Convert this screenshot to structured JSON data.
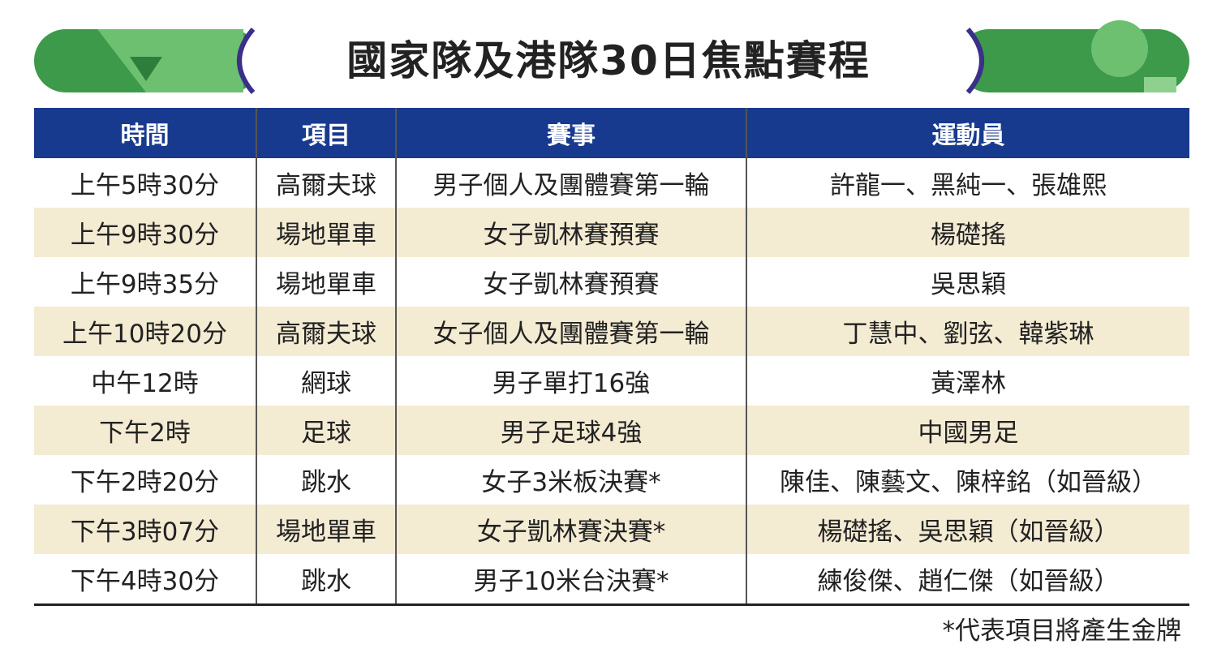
{
  "header": {
    "title": "國家隊及港隊30日焦點賽程"
  },
  "table": {
    "columns": [
      "時間",
      "項目",
      "賽事",
      "運動員"
    ],
    "rows": [
      [
        "上午5時30分",
        "高爾夫球",
        "男子個人及團體賽第一輪",
        "許龍一、黑純一、張雄熙"
      ],
      [
        "上午9時30分",
        "場地單車",
        "女子凱林賽預賽",
        "楊礎搖"
      ],
      [
        "上午9時35分",
        "場地單車",
        "女子凱林賽預賽",
        "吳思穎"
      ],
      [
        "上午10時20分",
        "高爾夫球",
        "女子個人及團體賽第一輪",
        "丁慧中、劉弦、韓紫琳"
      ],
      [
        "中午12時",
        "網球",
        "男子單打16強",
        "黃澤林"
      ],
      [
        "下午2時",
        "足球",
        "男子足球4強",
        "中國男足"
      ],
      [
        "下午2時20分",
        "跳水",
        "女子3米板決賽*",
        "陳佳、陳藝文、陳梓銘（如晉級）"
      ],
      [
        "下午3時07分",
        "場地單車",
        "女子凱林賽決賽*",
        "楊礎搖、吳思穎（如晉級）"
      ],
      [
        "下午4時30分",
        "跳水",
        "男子10米台決賽*",
        "練俊傑、趙仁傑（如晉級）"
      ]
    ]
  },
  "footnote": "*代表項目將產生金牌"
}
